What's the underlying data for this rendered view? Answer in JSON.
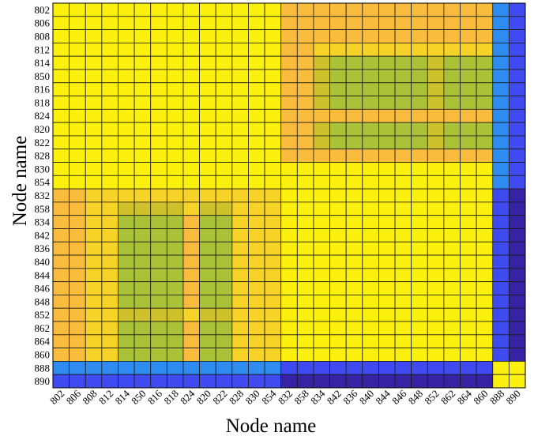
{
  "chart_data": {
    "type": "heatmap",
    "title": "",
    "xlabel": "Node name",
    "ylabel": "Node name",
    "row_labels": [
      "802",
      "806",
      "808",
      "812",
      "814",
      "850",
      "816",
      "818",
      "824",
      "820",
      "822",
      "828",
      "830",
      "854",
      "832",
      "858",
      "834",
      "842",
      "836",
      "840",
      "844",
      "846",
      "848",
      "852",
      "862",
      "864",
      "860",
      "888",
      "890"
    ],
    "col_labels": [
      "802",
      "806",
      "808",
      "812",
      "814",
      "850",
      "816",
      "818",
      "824",
      "820",
      "822",
      "828",
      "830",
      "854",
      "832",
      "858",
      "834",
      "842",
      "836",
      "840",
      "844",
      "846",
      "848",
      "852",
      "862",
      "864",
      "860",
      "888",
      "890"
    ],
    "level_colors": {
      "4": "#FCF00E",
      "3": "#F7D227",
      "2": "#F9BC3C",
      "1": "#CEC12C",
      "0": "#A9C238",
      "-1": "#2E8CF0",
      "-2": "#3F4BF0",
      "-3": "#3523A4"
    },
    "values": [
      [
        4,
        4,
        4,
        4,
        4,
        4,
        4,
        4,
        4,
        4,
        4,
        4,
        4,
        4,
        2,
        2,
        2,
        2,
        2,
        2,
        2,
        2,
        2,
        2,
        2,
        2,
        2,
        -1,
        -2
      ],
      [
        4,
        4,
        4,
        4,
        4,
        4,
        4,
        4,
        4,
        4,
        4,
        4,
        4,
        4,
        2,
        2,
        2,
        2,
        2,
        2,
        2,
        2,
        2,
        2,
        2,
        2,
        2,
        -1,
        -2
      ],
      [
        4,
        4,
        4,
        4,
        4,
        4,
        4,
        4,
        4,
        4,
        4,
        4,
        4,
        4,
        2,
        2,
        2,
        2,
        2,
        2,
        2,
        2,
        2,
        2,
        2,
        2,
        2,
        -1,
        -2
      ],
      [
        4,
        4,
        4,
        4,
        4,
        4,
        4,
        4,
        4,
        4,
        4,
        4,
        4,
        4,
        2,
        2,
        3,
        3,
        3,
        3,
        3,
        3,
        3,
        3,
        3,
        3,
        3,
        -1,
        -2
      ],
      [
        4,
        4,
        4,
        4,
        4,
        4,
        4,
        4,
        4,
        4,
        4,
        4,
        4,
        4,
        2,
        2,
        1,
        0,
        0,
        0,
        0,
        0,
        0,
        1,
        0,
        0,
        0,
        -1,
        -2
      ],
      [
        4,
        4,
        4,
        4,
        4,
        4,
        4,
        4,
        4,
        4,
        4,
        4,
        4,
        4,
        2,
        2,
        1,
        0,
        0,
        0,
        0,
        0,
        0,
        1,
        0,
        0,
        0,
        -1,
        -2
      ],
      [
        4,
        4,
        4,
        4,
        4,
        4,
        4,
        4,
        4,
        4,
        4,
        4,
        4,
        4,
        2,
        2,
        1,
        0,
        0,
        0,
        0,
        0,
        0,
        1,
        0,
        0,
        0,
        -1,
        -2
      ],
      [
        4,
        4,
        4,
        4,
        4,
        4,
        4,
        4,
        4,
        4,
        4,
        4,
        4,
        4,
        2,
        2,
        1,
        0,
        0,
        0,
        0,
        0,
        0,
        1,
        0,
        0,
        0,
        -1,
        -2
      ],
      [
        4,
        4,
        4,
        4,
        4,
        4,
        4,
        4,
        4,
        4,
        4,
        4,
        4,
        4,
        2,
        2,
        2,
        2,
        2,
        2,
        2,
        2,
        2,
        2,
        2,
        2,
        2,
        -1,
        -2
      ],
      [
        4,
        4,
        4,
        4,
        4,
        4,
        4,
        4,
        4,
        4,
        4,
        4,
        4,
        4,
        2,
        2,
        1,
        0,
        0,
        0,
        0,
        0,
        0,
        1,
        0,
        0,
        0,
        -1,
        -2
      ],
      [
        4,
        4,
        4,
        4,
        4,
        4,
        4,
        4,
        4,
        4,
        4,
        4,
        4,
        4,
        2,
        2,
        1,
        0,
        0,
        0,
        0,
        0,
        0,
        1,
        0,
        0,
        0,
        -1,
        -2
      ],
      [
        4,
        4,
        4,
        4,
        4,
        4,
        4,
        4,
        4,
        4,
        4,
        4,
        4,
        4,
        2,
        2,
        2,
        2,
        2,
        2,
        2,
        2,
        2,
        2,
        2,
        2,
        2,
        -1,
        -2
      ],
      [
        4,
        4,
        4,
        4,
        4,
        4,
        4,
        4,
        4,
        4,
        4,
        4,
        4,
        4,
        4,
        4,
        4,
        4,
        4,
        4,
        4,
        4,
        4,
        4,
        4,
        4,
        4,
        -1,
        -2
      ],
      [
        4,
        4,
        4,
        4,
        4,
        4,
        4,
        4,
        4,
        4,
        4,
        4,
        4,
        4,
        4,
        4,
        4,
        4,
        4,
        4,
        4,
        4,
        4,
        4,
        4,
        4,
        4,
        -1,
        -2
      ],
      [
        2,
        2,
        3,
        3,
        3,
        3,
        3,
        3,
        3,
        3,
        3,
        3,
        3,
        3,
        4,
        4,
        4,
        4,
        4,
        4,
        4,
        4,
        4,
        4,
        4,
        4,
        4,
        -2,
        -3
      ],
      [
        2,
        2,
        3,
        3,
        1,
        1,
        1,
        1,
        3,
        1,
        1,
        3,
        3,
        3,
        4,
        4,
        4,
        4,
        4,
        4,
        4,
        4,
        4,
        4,
        4,
        4,
        4,
        -2,
        -3
      ],
      [
        2,
        2,
        3,
        3,
        0,
        0,
        0,
        0,
        2,
        0,
        0,
        3,
        3,
        3,
        4,
        4,
        4,
        4,
        4,
        4,
        4,
        4,
        4,
        4,
        4,
        4,
        4,
        -2,
        -3
      ],
      [
        2,
        2,
        3,
        3,
        0,
        0,
        0,
        0,
        2,
        0,
        0,
        3,
        3,
        3,
        4,
        4,
        4,
        4,
        4,
        4,
        4,
        4,
        4,
        4,
        4,
        4,
        4,
        -2,
        -3
      ],
      [
        2,
        2,
        3,
        3,
        0,
        0,
        0,
        0,
        2,
        0,
        0,
        3,
        3,
        3,
        4,
        4,
        4,
        4,
        4,
        4,
        4,
        4,
        4,
        4,
        4,
        4,
        4,
        -2,
        -3
      ],
      [
        2,
        2,
        3,
        3,
        0,
        0,
        0,
        0,
        2,
        0,
        0,
        3,
        3,
        3,
        4,
        4,
        4,
        4,
        4,
        4,
        4,
        4,
        4,
        4,
        4,
        4,
        4,
        -2,
        -3
      ],
      [
        2,
        2,
        3,
        3,
        0,
        0,
        0,
        0,
        2,
        0,
        0,
        3,
        3,
        3,
        4,
        4,
        4,
        4,
        4,
        4,
        4,
        4,
        4,
        4,
        4,
        4,
        4,
        -2,
        -3
      ],
      [
        2,
        2,
        3,
        3,
        0,
        0,
        0,
        0,
        2,
        0,
        0,
        3,
        3,
        3,
        4,
        4,
        4,
        4,
        4,
        4,
        4,
        4,
        4,
        4,
        4,
        4,
        4,
        -2,
        -3
      ],
      [
        2,
        2,
        3,
        3,
        0,
        0,
        0,
        0,
        2,
        0,
        0,
        3,
        3,
        3,
        4,
        4,
        4,
        4,
        4,
        4,
        4,
        4,
        4,
        4,
        4,
        4,
        4,
        -2,
        -3
      ],
      [
        2,
        2,
        3,
        3,
        1,
        1,
        1,
        1,
        3,
        1,
        1,
        3,
        3,
        3,
        4,
        4,
        4,
        4,
        4,
        4,
        4,
        4,
        4,
        4,
        4,
        4,
        4,
        -2,
        -3
      ],
      [
        2,
        2,
        3,
        3,
        0,
        0,
        0,
        0,
        2,
        0,
        0,
        3,
        3,
        3,
        4,
        4,
        4,
        4,
        4,
        4,
        4,
        4,
        4,
        4,
        4,
        4,
        4,
        -2,
        -3
      ],
      [
        2,
        2,
        3,
        3,
        0,
        0,
        0,
        0,
        2,
        0,
        0,
        3,
        3,
        3,
        4,
        4,
        4,
        4,
        4,
        4,
        4,
        4,
        4,
        4,
        4,
        4,
        4,
        -2,
        -3
      ],
      [
        2,
        2,
        3,
        3,
        0,
        0,
        0,
        0,
        2,
        0,
        0,
        3,
        3,
        3,
        4,
        4,
        4,
        4,
        4,
        4,
        4,
        4,
        4,
        4,
        4,
        4,
        4,
        -2,
        -3
      ],
      [
        -1,
        -1,
        -1,
        -1,
        -1,
        -1,
        -1,
        -1,
        -1,
        -1,
        -1,
        -1,
        -1,
        -1,
        -2,
        -2,
        -2,
        -2,
        -2,
        -2,
        -2,
        -2,
        -2,
        -2,
        -2,
        -2,
        -2,
        4,
        4
      ],
      [
        -2,
        -2,
        -2,
        -2,
        -2,
        -2,
        -2,
        -2,
        -2,
        -2,
        -2,
        -2,
        -2,
        -2,
        -3,
        -3,
        -3,
        -3,
        -3,
        -3,
        -3,
        -3,
        -3,
        -3,
        -3,
        -3,
        -3,
        4,
        4
      ]
    ],
    "grid": true,
    "colorbar": false
  }
}
